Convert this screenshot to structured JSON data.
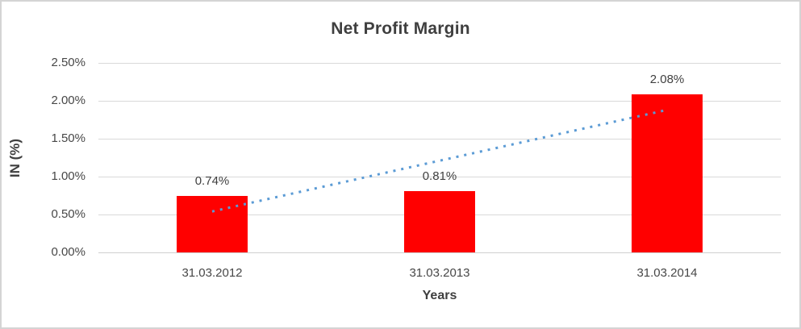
{
  "chart_data": {
    "type": "bar",
    "title": "Net Profit Margin",
    "xlabel": "Years",
    "ylabel": "IN (%)",
    "categories": [
      "31.03.2012",
      "31.03.2013",
      "31.03.2014"
    ],
    "values": [
      0.74,
      0.81,
      2.08
    ],
    "data_labels": [
      "0.74%",
      "0.81%",
      "2.08%"
    ],
    "yticks": [
      0,
      0.5,
      1.0,
      1.5,
      2.0,
      2.5
    ],
    "ytick_labels": [
      "0.00%",
      "0.50%",
      "1.00%",
      "1.50%",
      "2.00%",
      "2.50%"
    ],
    "ylim": [
      0,
      2.5
    ],
    "grid": "horizontal",
    "legend": "none",
    "bar_color": "#ff0000",
    "trendline": {
      "style": "dotted",
      "color": "#5b9bd5",
      "y_start": 0.54,
      "y_end": 1.88
    }
  }
}
